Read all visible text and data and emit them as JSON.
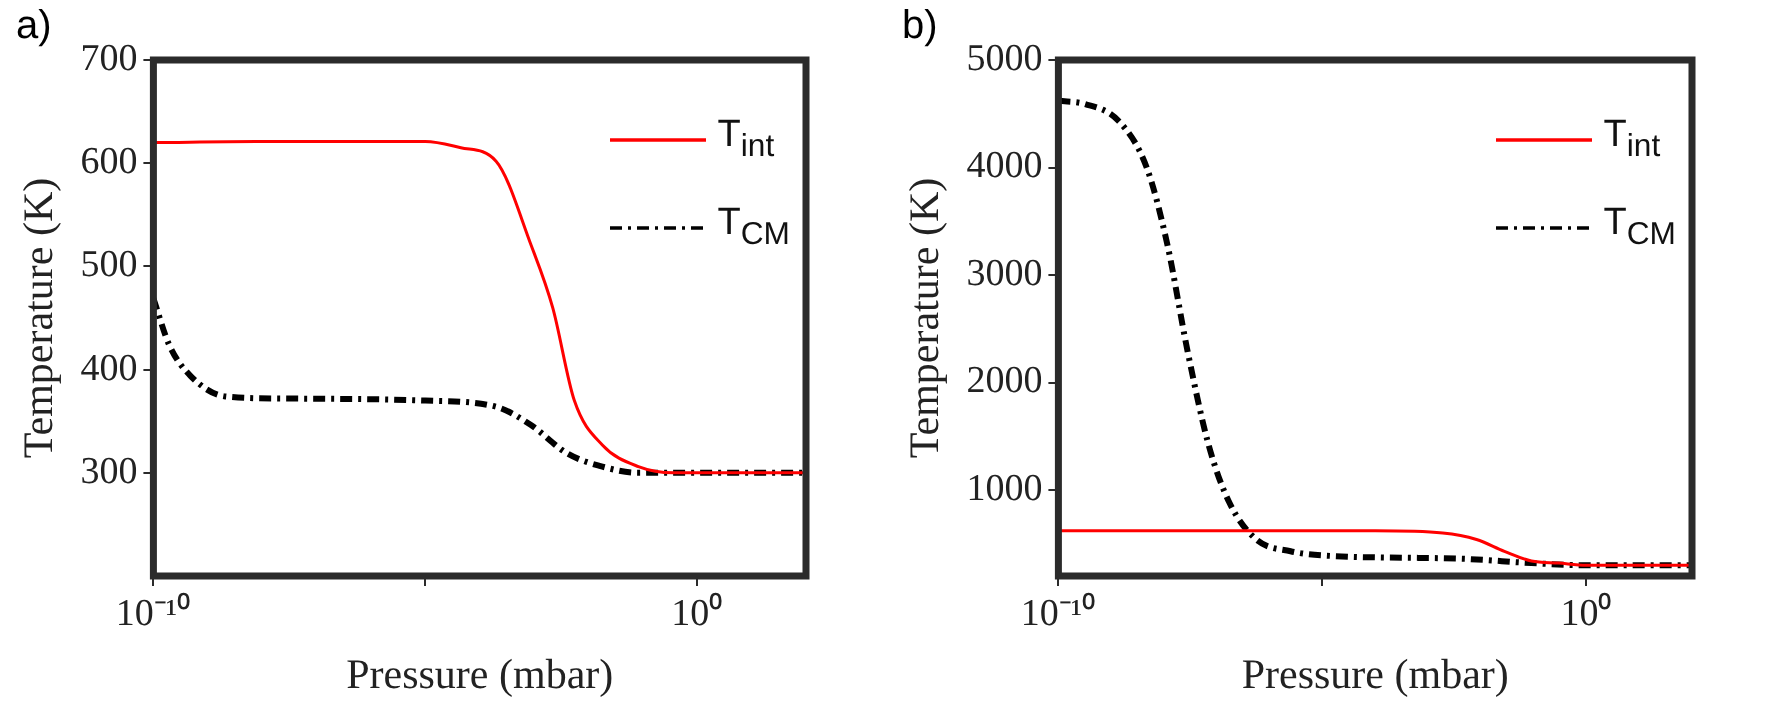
{
  "chart_data": [
    {
      "type": "line",
      "title": "a)",
      "xlabel": "Pressure (mbar)",
      "ylabel": "Temperature (K)",
      "log": "x",
      "xlim": [
        1e-10,
        100
      ],
      "xticks": [
        {
          "value": 1e-10,
          "label": "10⁻¹⁰"
        },
        {
          "value": 1e-05,
          "label": null
        },
        {
          "value": 1,
          "label": "10⁰"
        }
      ],
      "ylim": [
        200,
        700
      ],
      "yticks": [
        300,
        400,
        500,
        600,
        700
      ],
      "legend": "top right",
      "series": [
        {
          "name": "T$_{int}$",
          "color": "#ff0000",
          "line_style": "solid",
          "x": [
            1e-10,
            1e-08,
            1e-06,
            1e-05,
            4.5e-05,
            0.0002,
            0.00089,
            0.0022,
            0.0055,
            0.018,
            0.083,
            0.37,
            1,
            100
          ],
          "values": [
            620,
            621,
            621,
            621,
            615,
            602,
            520,
            460,
            370,
            327,
            306,
            300,
            300,
            300
          ]
        },
        {
          "name": "T$_{CM}$",
          "color": "#000000",
          "line_style": "dashed",
          "x": [
            1e-10,
            1.95e-10,
            4.8e-10,
            2.1e-09,
            2.4e-08,
            1e-05,
            0.0002,
            0.00089,
            0.004,
            0.018,
            0.083,
            1,
            100
          ],
          "values": [
            469,
            424,
            394,
            374,
            372,
            370,
            364,
            346,
            319,
            306,
            300,
            300,
            300
          ]
        }
      ]
    },
    {
      "type": "line",
      "title": "b)",
      "xlabel": "Pressure (mbar)",
      "ylabel": "Temperature (K)",
      "log": "x",
      "xlim": [
        1e-10,
        100
      ],
      "xticks": [
        {
          "value": 1e-10,
          "label": "10⁻¹⁰"
        },
        {
          "value": 1e-05,
          "label": null
        },
        {
          "value": 1,
          "label": "10⁰"
        }
      ],
      "ylim": [
        200,
        5000
      ],
      "yticks": [
        1000,
        2000,
        3000,
        4000,
        5000
      ],
      "legend": "top right",
      "series": [
        {
          "name": "T$_{int}$",
          "color": "#ff0000",
          "line_style": "solid",
          "x": [
            1e-10,
            1e-06,
            0.0001,
            0.0019,
            0.0083,
            0.028,
            0.091,
            0.3,
            1,
            100
          ],
          "values": [
            620,
            620,
            620,
            600,
            540,
            430,
            340,
            320,
            300,
            300
          ]
        },
        {
          "name": "T$_{CM}$",
          "color": "#000000",
          "line_style": "dashed",
          "x": [
            1e-10,
            3.2e-10,
            1.4e-09,
            4.7e-09,
            1.15e-08,
            2.8e-08,
            6.9e-08,
            1.7e-07,
            5.6e-07,
            2.5e-06,
            1.1e-05,
            0.0046,
            0.091,
            1,
            100
          ],
          "values": [
            4620,
            4590,
            4430,
            4000,
            3290,
            2290,
            1430,
            890,
            540,
            430,
            390,
            360,
            320,
            300,
            300
          ]
        }
      ]
    }
  ]
}
